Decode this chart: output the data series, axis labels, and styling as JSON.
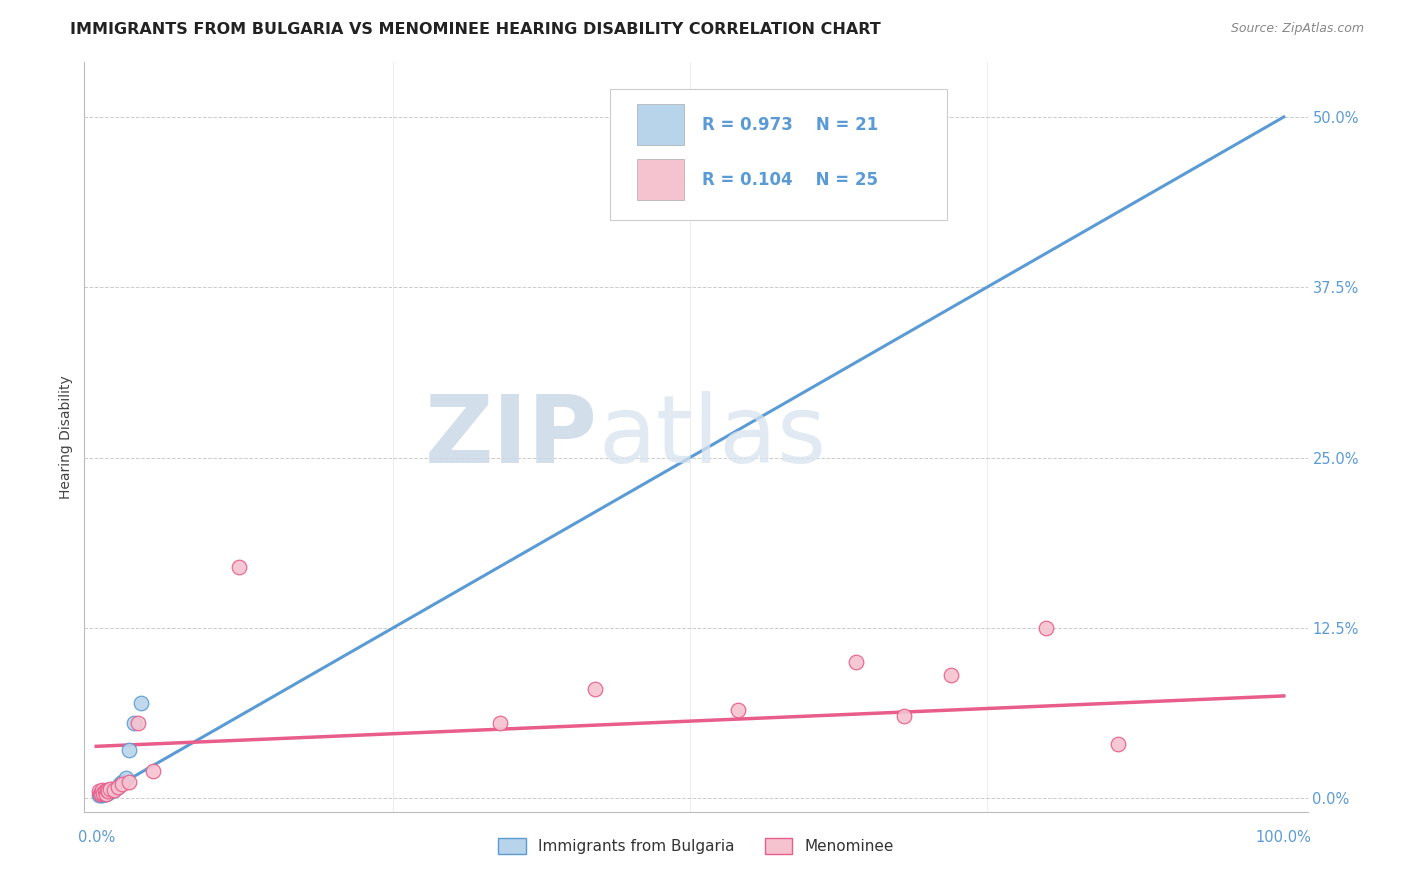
{
  "title": "IMMIGRANTS FROM BULGARIA VS MENOMINEE HEARING DISABILITY CORRELATION CHART",
  "source_text": "Source: ZipAtlas.com",
  "ylabel": "Hearing Disability",
  "watermark_zip": "ZIP",
  "watermark_atlas": "atlas",
  "legend_items": [
    {
      "label": "Immigrants from Bulgaria",
      "R": "R = 0.973",
      "N": "N = 21",
      "color": "#aec6e8"
    },
    {
      "label": "Menominee",
      "R": "R = 0.104",
      "N": "N = 25",
      "color": "#f4b8c8"
    }
  ],
  "bg_color": "#ffffff",
  "grid_color": "#cccccc",
  "ytick_labels": [
    "0.0%",
    "12.5%",
    "25.0%",
    "37.5%",
    "50.0%"
  ],
  "ytick_positions": [
    0.0,
    0.125,
    0.25,
    0.375,
    0.5
  ],
  "xtick_labels": [
    "0.0%",
    "",
    "",
    "",
    "100.0%"
  ],
  "xtick_positions": [
    0.0,
    0.25,
    0.5,
    0.75,
    1.0
  ],
  "xlim": [
    -0.01,
    1.02
  ],
  "ylim": [
    -0.01,
    0.54
  ],
  "blue_scatter_x": [
    0.002,
    0.003,
    0.004,
    0.005,
    0.005,
    0.006,
    0.007,
    0.008,
    0.008,
    0.01,
    0.01,
    0.012,
    0.013,
    0.015,
    0.018,
    0.02,
    0.022,
    0.025,
    0.028,
    0.032,
    0.038
  ],
  "blue_scatter_y": [
    0.002,
    0.003,
    0.002,
    0.004,
    0.002,
    0.003,
    0.004,
    0.003,
    0.005,
    0.004,
    0.006,
    0.005,
    0.007,
    0.006,
    0.008,
    0.01,
    0.012,
    0.015,
    0.035,
    0.055,
    0.07
  ],
  "pink_scatter_x": [
    0.002,
    0.003,
    0.004,
    0.005,
    0.006,
    0.007,
    0.008,
    0.009,
    0.01,
    0.012,
    0.015,
    0.018,
    0.022,
    0.028,
    0.035,
    0.048,
    0.12,
    0.34,
    0.42,
    0.54,
    0.64,
    0.68,
    0.72,
    0.8,
    0.86
  ],
  "pink_scatter_y": [
    0.005,
    0.003,
    0.004,
    0.006,
    0.004,
    0.005,
    0.003,
    0.006,
    0.005,
    0.007,
    0.006,
    0.008,
    0.01,
    0.012,
    0.055,
    0.02,
    0.17,
    0.055,
    0.08,
    0.065,
    0.1,
    0.06,
    0.09,
    0.125,
    0.04
  ],
  "blue_line_x": [
    0.0,
    1.0
  ],
  "blue_line_y": [
    0.0,
    0.5
  ],
  "pink_line_x": [
    0.0,
    1.0
  ],
  "pink_line_y": [
    0.038,
    0.075
  ],
  "blue_color": "#5b9bd5",
  "pink_color": "#e85d8a",
  "blue_scatter_color": "#b8d4ea",
  "pink_scatter_color": "#f5c2d0",
  "title_fontsize": 11.5,
  "axis_label_fontsize": 10,
  "tick_fontsize": 10.5,
  "legend_fontsize": 12
}
